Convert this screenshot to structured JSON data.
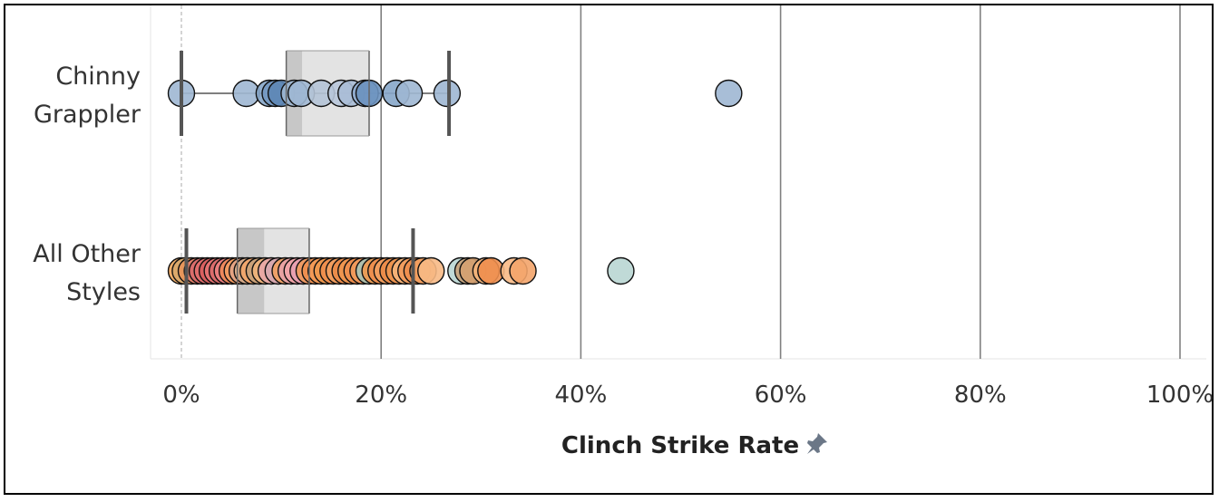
{
  "chart_data": {
    "type": "scatter",
    "subtype": "box-and-whisker with strip dots",
    "title": "",
    "xlabel": "Clinch Strike Rate",
    "ylabel": "",
    "xlim": [
      -0.016,
      1.03
    ],
    "x_ticks": [
      0,
      0.2,
      0.4,
      0.6,
      0.8,
      1.0
    ],
    "x_tick_labels": [
      "0%",
      "20%",
      "40%",
      "60%",
      "80%",
      "100%"
    ],
    "grid": "vertical gridlines at 20% intervals; dashed zero line",
    "x_format": "percent",
    "pin_icon": "pin-icon",
    "categories": [
      {
        "label_lines": [
          "Chinny",
          "Grappler"
        ],
        "box": {
          "whisker_low": 0.0,
          "q1": 0.105,
          "median": 0.121,
          "q3": 0.188,
          "whisker_high": 0.268
        },
        "points": [
          {
            "x": 0.0,
            "color": "#9fb7d3"
          },
          {
            "x": 0.065,
            "color": "#9fb7d3"
          },
          {
            "x": 0.088,
            "color": "#86a6c9"
          },
          {
            "x": 0.094,
            "color": "#7398c2"
          },
          {
            "x": 0.1,
            "color": "#5e87b6"
          },
          {
            "x": 0.113,
            "color": "#9fb7d3"
          },
          {
            "x": 0.12,
            "color": "#9fb7d3"
          },
          {
            "x": 0.14,
            "color": "#b4c3d6"
          },
          {
            "x": 0.16,
            "color": "#b8c7da"
          },
          {
            "x": 0.17,
            "color": "#a9bdd6"
          },
          {
            "x": 0.184,
            "color": "#8eaacd"
          },
          {
            "x": 0.188,
            "color": "#6c92bf"
          },
          {
            "x": 0.215,
            "color": "#86a6c9"
          },
          {
            "x": 0.228,
            "color": "#9fb7d3"
          },
          {
            "x": 0.266,
            "color": "#9fb7d3"
          },
          {
            "x": 0.548,
            "color": "#9fb7d3"
          }
        ]
      },
      {
        "label_lines": [
          "All Other",
          "Styles"
        ],
        "box": {
          "whisker_low": 0.005,
          "q1": 0.056,
          "median": 0.083,
          "q3": 0.128,
          "whisker_high": 0.232
        },
        "points": [
          {
            "x": 0.0,
            "color": "#f0a55a"
          },
          {
            "x": 0.004,
            "color": "#d9a86c"
          },
          {
            "x": 0.01,
            "color": "#e8935a"
          },
          {
            "x": 0.016,
            "color": "#e07b6a"
          },
          {
            "x": 0.021,
            "color": "#d96b6b"
          },
          {
            "x": 0.026,
            "color": "#e06c6c"
          },
          {
            "x": 0.031,
            "color": "#d95f5f"
          },
          {
            "x": 0.036,
            "color": "#e57373"
          },
          {
            "x": 0.041,
            "color": "#d96b6b"
          },
          {
            "x": 0.046,
            "color": "#ea8080"
          },
          {
            "x": 0.051,
            "color": "#f08a5a"
          },
          {
            "x": 0.056,
            "color": "#f29b60"
          },
          {
            "x": 0.061,
            "color": "#e4a486"
          },
          {
            "x": 0.066,
            "color": "#d4ab8a"
          },
          {
            "x": 0.072,
            "color": "#f2a56a"
          },
          {
            "x": 0.078,
            "color": "#c8a27a"
          },
          {
            "x": 0.084,
            "color": "#f0b27a"
          },
          {
            "x": 0.09,
            "color": "#e9a9a9"
          },
          {
            "x": 0.097,
            "color": "#d7a8b0"
          },
          {
            "x": 0.104,
            "color": "#f0a060"
          },
          {
            "x": 0.11,
            "color": "#e8a2a8"
          },
          {
            "x": 0.116,
            "color": "#f2a4a8"
          },
          {
            "x": 0.122,
            "color": "#e8a0b0"
          },
          {
            "x": 0.128,
            "color": "#f19a5c"
          },
          {
            "x": 0.134,
            "color": "#ee8e4e"
          },
          {
            "x": 0.14,
            "color": "#f49a56"
          },
          {
            "x": 0.146,
            "color": "#f0984e"
          },
          {
            "x": 0.152,
            "color": "#ee8e4e"
          },
          {
            "x": 0.158,
            "color": "#f3a060"
          },
          {
            "x": 0.164,
            "color": "#ea8a48"
          },
          {
            "x": 0.17,
            "color": "#f09650"
          },
          {
            "x": 0.176,
            "color": "#ee8e4e"
          },
          {
            "x": 0.182,
            "color": "#f19a5c"
          },
          {
            "x": 0.188,
            "color": "#a8c4b6"
          },
          {
            "x": 0.194,
            "color": "#f0984e"
          },
          {
            "x": 0.2,
            "color": "#ee8e4e"
          },
          {
            "x": 0.206,
            "color": "#f3a060"
          },
          {
            "x": 0.212,
            "color": "#ea8a48"
          },
          {
            "x": 0.218,
            "color": "#f09650"
          },
          {
            "x": 0.224,
            "color": "#f5b47a"
          },
          {
            "x": 0.23,
            "color": "#f19a5c"
          },
          {
            "x": 0.236,
            "color": "#ee8e4e"
          },
          {
            "x": 0.242,
            "color": "#f3a060"
          },
          {
            "x": 0.25,
            "color": "#f7b985"
          },
          {
            "x": 0.28,
            "color": "#b9d6d3"
          },
          {
            "x": 0.287,
            "color": "#c9a27a"
          },
          {
            "x": 0.292,
            "color": "#d4a070"
          },
          {
            "x": 0.305,
            "color": "#f5b47a"
          },
          {
            "x": 0.31,
            "color": "#ee8e4e"
          },
          {
            "x": 0.333,
            "color": "#f7b985"
          },
          {
            "x": 0.342,
            "color": "#f3a46a"
          },
          {
            "x": 0.44,
            "color": "#b9d6d3"
          }
        ]
      }
    ]
  }
}
